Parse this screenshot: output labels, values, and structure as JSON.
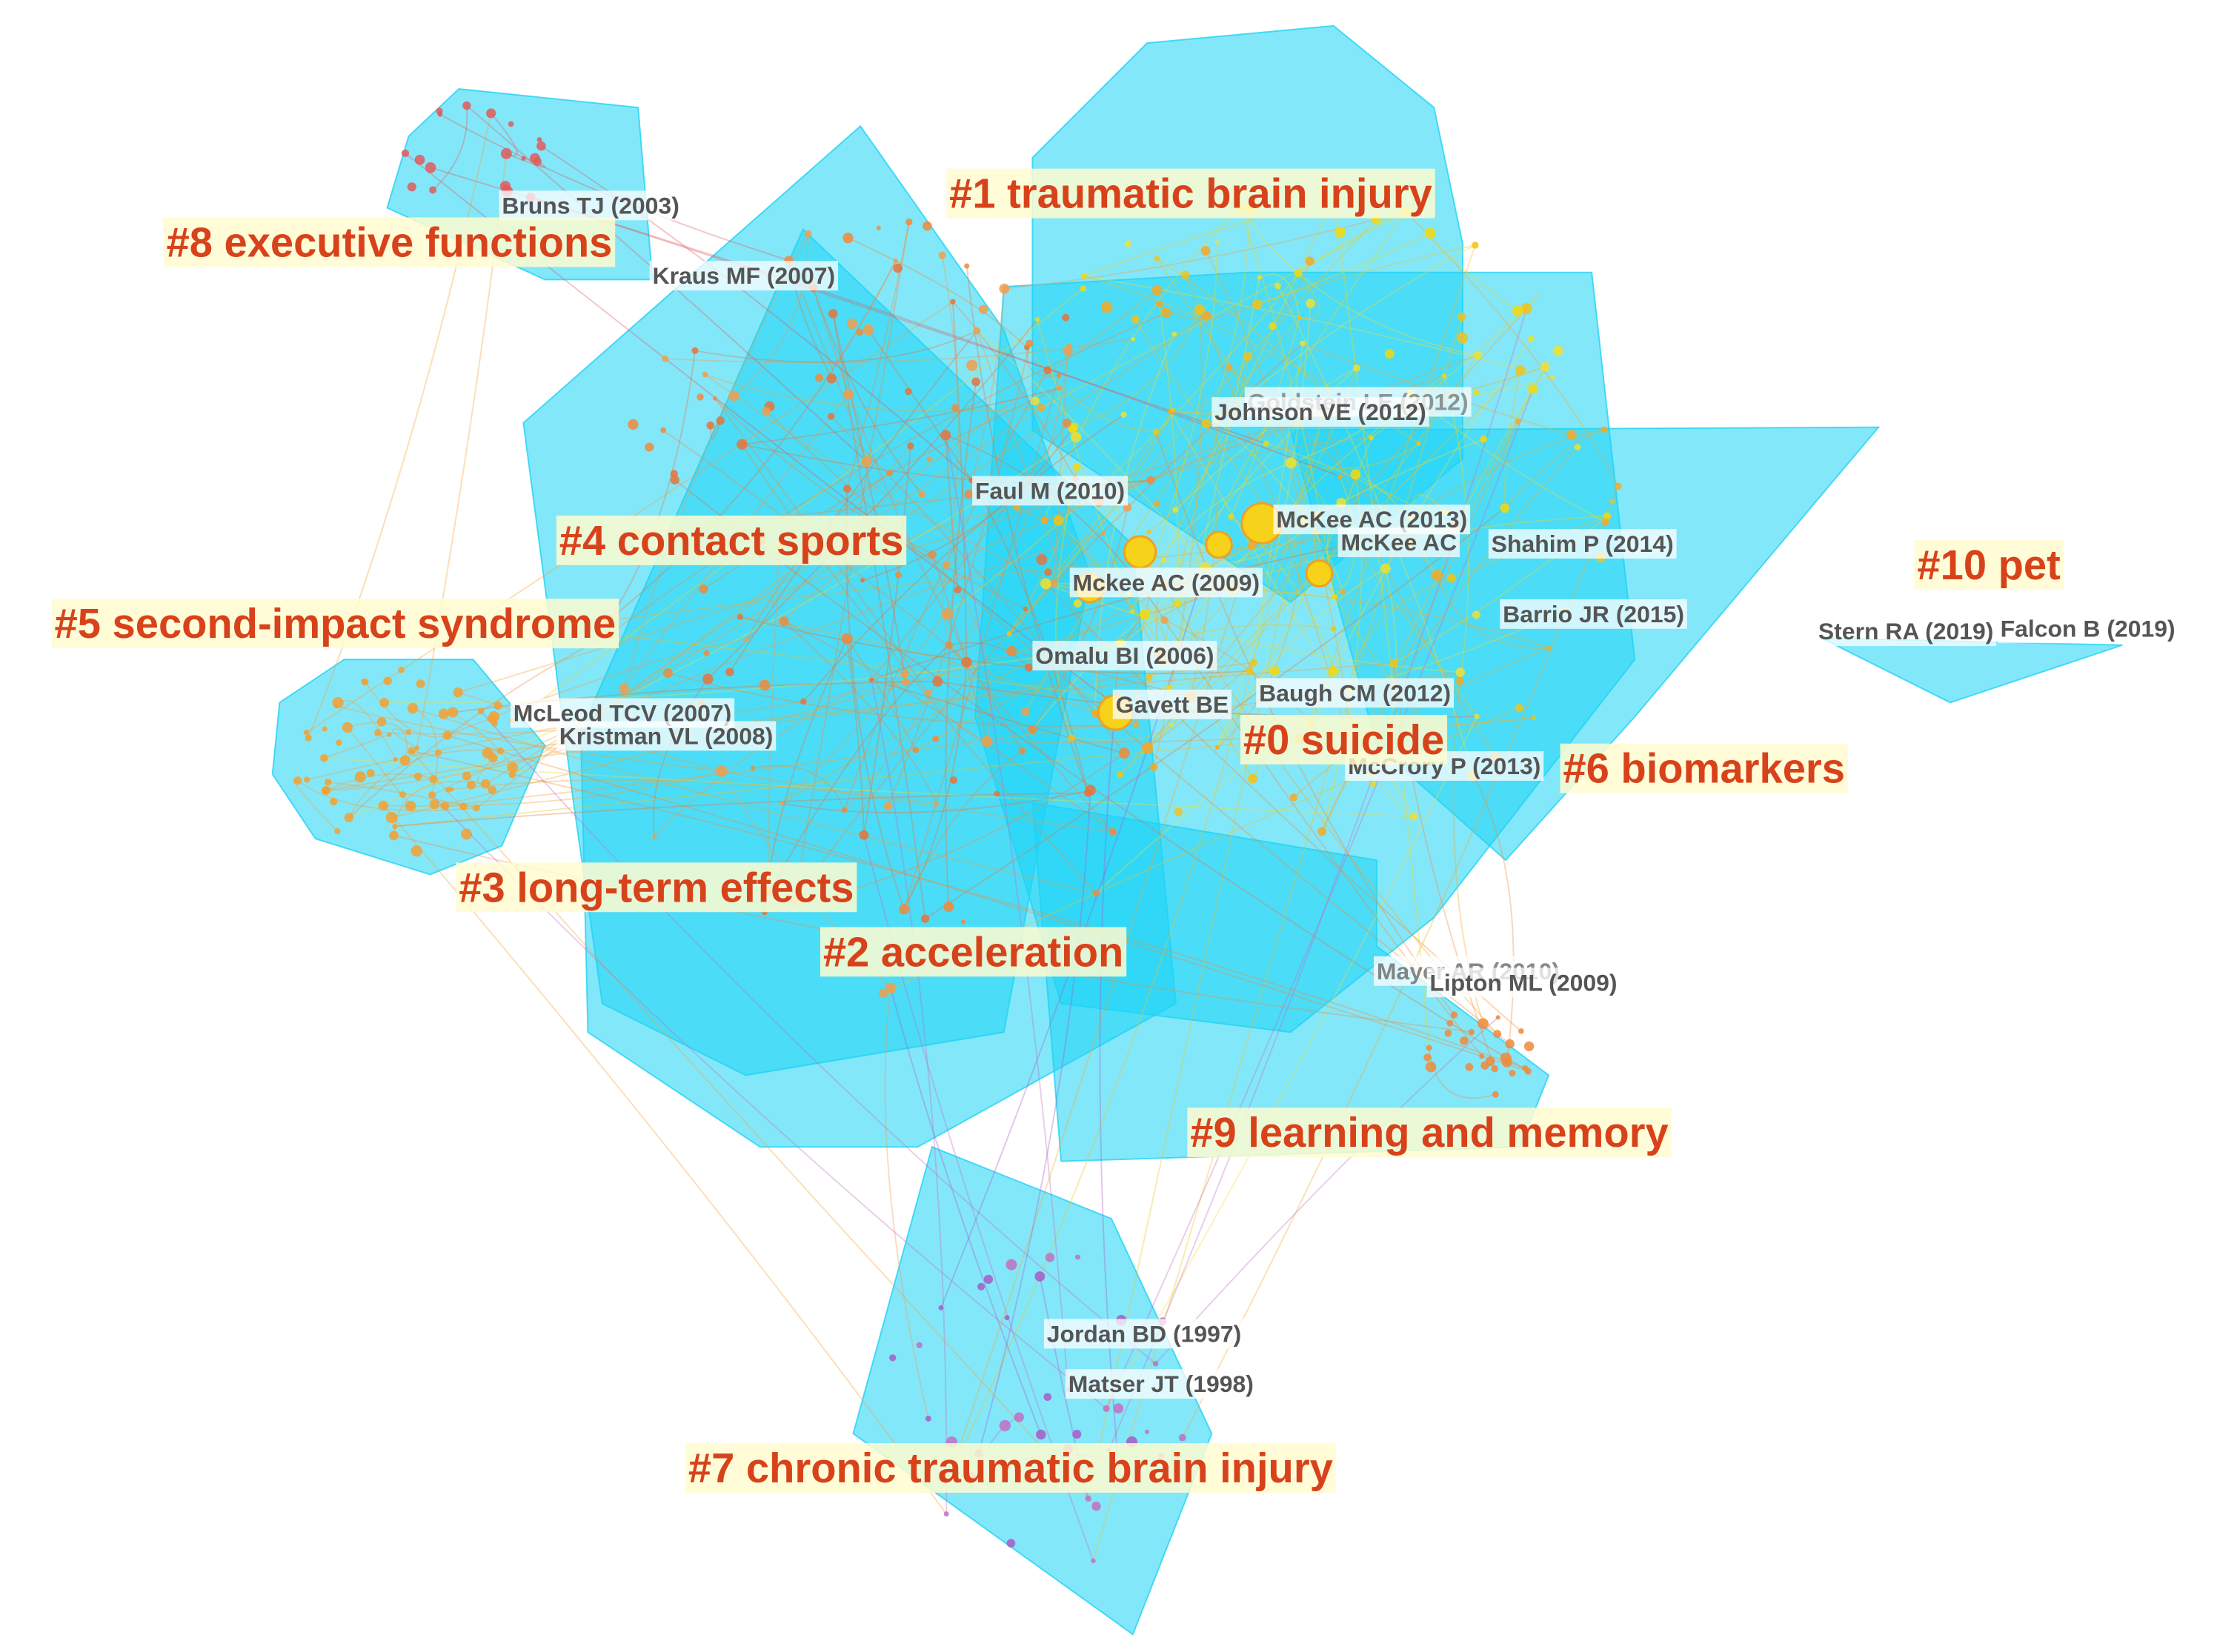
{
  "clusters": [
    {
      "label": "#0 suicide"
    },
    {
      "label": "#1 traumatic brain injury"
    },
    {
      "label": "#2 acceleration"
    },
    {
      "label": "#3 long-term effects"
    },
    {
      "label": "#4 contact sports"
    },
    {
      "label": "#5 second-impact syndrome"
    },
    {
      "label": "#6 biomarkers"
    },
    {
      "label": "#7 chronic traumatic brain injury"
    },
    {
      "label": "#8 executive functions"
    },
    {
      "label": "#9 learning and memory"
    },
    {
      "label": "#10 pet"
    }
  ],
  "references": [
    {
      "label": "Bruns TJ (2003)"
    },
    {
      "label": "Kraus MF (2007)"
    },
    {
      "label": "Goldstein LE (2012)"
    },
    {
      "label": "Johnson VE (2012)"
    },
    {
      "label": "Faul M (2010)"
    },
    {
      "label": "McKee AC (2013)"
    },
    {
      "label": "McKee AC"
    },
    {
      "label": "Shahim P (2014)"
    },
    {
      "label": "Mckee AC (2009)"
    },
    {
      "label": "Barrio JR (2015)"
    },
    {
      "label": "Stern RA (2019)"
    },
    {
      "label": "Falcon B (2019)"
    },
    {
      "label": "Omalu BI (2006)"
    },
    {
      "label": "McLeod TCV (2007)"
    },
    {
      "label": "Kristman VL (2008)"
    },
    {
      "label": "Gavett BE"
    },
    {
      "label": "Baugh CM (2012)"
    },
    {
      "label": "McCrory P (2013)"
    },
    {
      "label": "Mayer AR (2010)"
    },
    {
      "label": "Lipton ML (2009)"
    },
    {
      "label": "Jordan BD (1997)"
    },
    {
      "label": "Matser JT (1998)"
    }
  ]
}
